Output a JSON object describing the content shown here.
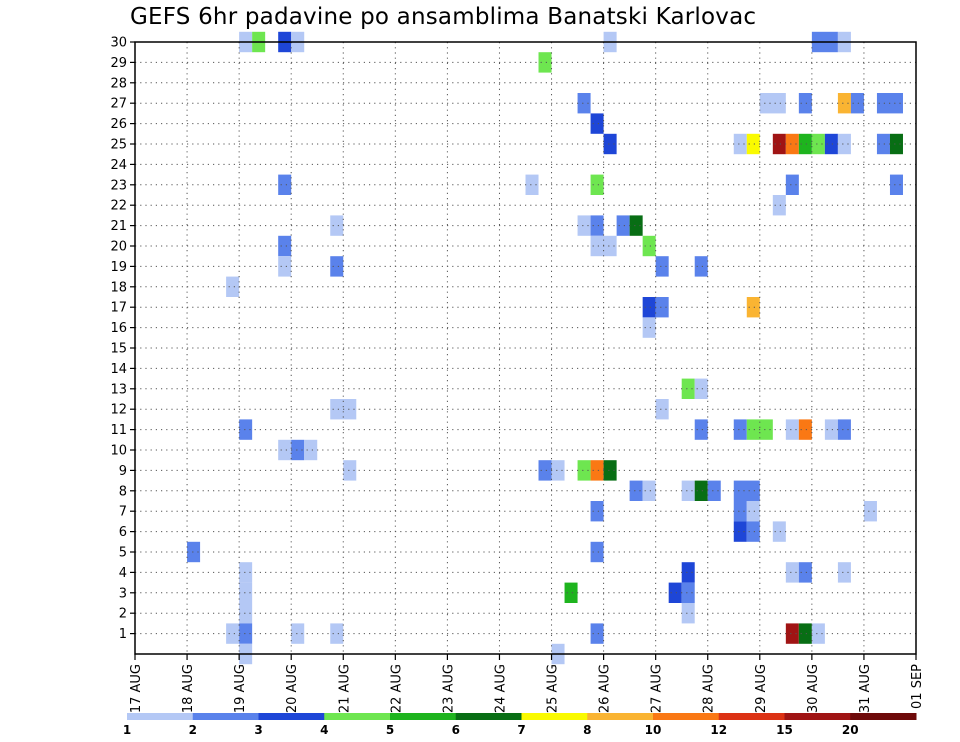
{
  "chart_data": {
    "type": "heatmap",
    "title": "GEFS 6hr padavine po ansamblima Banatski Karlovac",
    "xlabel": "",
    "ylabel": "",
    "x_ticks": [
      "17 AUG",
      "18 AUG",
      "19 AUG",
      "20 AUG",
      "21 AUG",
      "22 AUG",
      "23 AUG",
      "24 AUG",
      "25 AUG",
      "26 AUG",
      "27 AUG",
      "28 AUG",
      "29 AUG",
      "30 AUG",
      "31 AUG",
      "01 SEP"
    ],
    "y_ticks": [
      1,
      2,
      3,
      4,
      5,
      6,
      7,
      8,
      9,
      10,
      11,
      12,
      13,
      14,
      15,
      16,
      17,
      18,
      19,
      20,
      21,
      22,
      23,
      24,
      25,
      26,
      27,
      28,
      29,
      30
    ],
    "x_step_hours": 6,
    "xlim": [
      0,
      60
    ],
    "ylim": [
      0,
      30
    ],
    "grid": true,
    "colorbar": {
      "labels": [
        "1",
        "2",
        "3",
        "4",
        "5",
        "6",
        "7",
        "8",
        "10",
        "12",
        "15",
        "20"
      ],
      "colors": [
        "#b4c8f5",
        "#5a82eb",
        "#1e46d7",
        "#6ee650",
        "#1eb41e",
        "#086e14",
        "#fafa00",
        "#fab432",
        "#fa7814",
        "#dc3214",
        "#a01414",
        "#6e0a0a"
      ]
    },
    "cells": [
      {
        "x": [
          8,
          9
        ],
        "y": 30,
        "v": 1
      },
      {
        "x": [
          9,
          10
        ],
        "y": 30,
        "v": 4
      },
      {
        "x": [
          11,
          12
        ],
        "y": 30,
        "v": 3
      },
      {
        "x": [
          12,
          13
        ],
        "y": 30,
        "v": 1
      },
      {
        "x": [
          36,
          37
        ],
        "y": 30,
        "v": 1
      },
      {
        "x": [
          52,
          54
        ],
        "y": 30,
        "v": 2
      },
      {
        "x": [
          54,
          55
        ],
        "y": 30,
        "v": 1
      },
      {
        "x": [
          31,
          32
        ],
        "y": 29,
        "v": 4
      },
      {
        "x": [
          34,
          35
        ],
        "y": 27,
        "v": 2
      },
      {
        "x": [
          48,
          50
        ],
        "y": 27,
        "v": 1
      },
      {
        "x": [
          51,
          52
        ],
        "y": 27,
        "v": 2
      },
      {
        "x": [
          54,
          55
        ],
        "y": 27,
        "v": 8
      },
      {
        "x": [
          55,
          56
        ],
        "y": 27,
        "v": 2
      },
      {
        "x": [
          57,
          59
        ],
        "y": 27,
        "v": 2
      },
      {
        "x": [
          35,
          36
        ],
        "y": 26,
        "v": 3
      },
      {
        "x": [
          36,
          37
        ],
        "y": 25,
        "v": 3
      },
      {
        "x": [
          46,
          47
        ],
        "y": 25,
        "v": 1
      },
      {
        "x": [
          47,
          48
        ],
        "y": 25,
        "v": 7
      },
      {
        "x": [
          49,
          50
        ],
        "y": 25,
        "v": 15
      },
      {
        "x": [
          50,
          51
        ],
        "y": 25,
        "v": 10
      },
      {
        "x": [
          51,
          52
        ],
        "y": 25,
        "v": 5
      },
      {
        "x": [
          52,
          53
        ],
        "y": 25,
        "v": 4
      },
      {
        "x": [
          53,
          54
        ],
        "y": 25,
        "v": 3
      },
      {
        "x": [
          54,
          55
        ],
        "y": 25,
        "v": 1
      },
      {
        "x": [
          57,
          58
        ],
        "y": 25,
        "v": 2
      },
      {
        "x": [
          58,
          59
        ],
        "y": 25,
        "v": 6
      },
      {
        "x": [
          11,
          12
        ],
        "y": 23,
        "v": 2
      },
      {
        "x": [
          30,
          31
        ],
        "y": 23,
        "v": 1
      },
      {
        "x": [
          35,
          36
        ],
        "y": 23,
        "v": 4
      },
      {
        "x": [
          50,
          51
        ],
        "y": 23,
        "v": 2
      },
      {
        "x": [
          58,
          59
        ],
        "y": 23,
        "v": 2
      },
      {
        "x": [
          49,
          50
        ],
        "y": 22,
        "v": 1
      },
      {
        "x": [
          15,
          16
        ],
        "y": 21,
        "v": 1
      },
      {
        "x": [
          34,
          35
        ],
        "y": 21,
        "v": 1
      },
      {
        "x": [
          35,
          36
        ],
        "y": 21,
        "v": 2
      },
      {
        "x": [
          37,
          38
        ],
        "y": 21,
        "v": 2
      },
      {
        "x": [
          38,
          39
        ],
        "y": 21,
        "v": 6
      },
      {
        "x": [
          11,
          12
        ],
        "y": 20,
        "v": 2
      },
      {
        "x": [
          35,
          37
        ],
        "y": 20,
        "v": 1
      },
      {
        "x": [
          39,
          40
        ],
        "y": 20,
        "v": 4
      },
      {
        "x": [
          11,
          12
        ],
        "y": 19,
        "v": 1
      },
      {
        "x": [
          15,
          16
        ],
        "y": 19,
        "v": 2
      },
      {
        "x": [
          40,
          41
        ],
        "y": 19,
        "v": 2
      },
      {
        "x": [
          43,
          44
        ],
        "y": 19,
        "v": 2
      },
      {
        "x": [
          7,
          8
        ],
        "y": 18,
        "v": 1
      },
      {
        "x": [
          39,
          40
        ],
        "y": 17,
        "v": 3
      },
      {
        "x": [
          40,
          41
        ],
        "y": 17,
        "v": 2
      },
      {
        "x": [
          47,
          48
        ],
        "y": 17,
        "v": 8
      },
      {
        "x": [
          39,
          40
        ],
        "y": 16,
        "v": 1
      },
      {
        "x": [
          42,
          43
        ],
        "y": 13,
        "v": 4
      },
      {
        "x": [
          43,
          44
        ],
        "y": 13,
        "v": 1
      },
      {
        "x": [
          15,
          17
        ],
        "y": 12,
        "v": 1
      },
      {
        "x": [
          40,
          41
        ],
        "y": 12,
        "v": 1
      },
      {
        "x": [
          8,
          9
        ],
        "y": 11,
        "v": 2
      },
      {
        "x": [
          43,
          44
        ],
        "y": 11,
        "v": 2
      },
      {
        "x": [
          46,
          47
        ],
        "y": 11,
        "v": 2
      },
      {
        "x": [
          47,
          49
        ],
        "y": 11,
        "v": 4
      },
      {
        "x": [
          50,
          51
        ],
        "y": 11,
        "v": 1
      },
      {
        "x": [
          51,
          52
        ],
        "y": 11,
        "v": 10
      },
      {
        "x": [
          53,
          54
        ],
        "y": 11,
        "v": 1
      },
      {
        "x": [
          54,
          55
        ],
        "y": 11,
        "v": 2
      },
      {
        "x": [
          11,
          12
        ],
        "y": 10,
        "v": 1
      },
      {
        "x": [
          12,
          13
        ],
        "y": 10,
        "v": 2
      },
      {
        "x": [
          13,
          14
        ],
        "y": 10,
        "v": 1
      },
      {
        "x": [
          16,
          17
        ],
        "y": 9,
        "v": 1
      },
      {
        "x": [
          31,
          32
        ],
        "y": 9,
        "v": 2
      },
      {
        "x": [
          32,
          33
        ],
        "y": 9,
        "v": 1
      },
      {
        "x": [
          34,
          35
        ],
        "y": 9,
        "v": 4
      },
      {
        "x": [
          35,
          36
        ],
        "y": 9,
        "v": 10
      },
      {
        "x": [
          36,
          37
        ],
        "y": 9,
        "v": 6
      },
      {
        "x": [
          38,
          39
        ],
        "y": 8,
        "v": 2
      },
      {
        "x": [
          39,
          40
        ],
        "y": 8,
        "v": 1
      },
      {
        "x": [
          42,
          43
        ],
        "y": 8,
        "v": 1
      },
      {
        "x": [
          43,
          44
        ],
        "y": 8,
        "v": 6
      },
      {
        "x": [
          44,
          45
        ],
        "y": 8,
        "v": 2
      },
      {
        "x": [
          46,
          48
        ],
        "y": 8,
        "v": 2
      },
      {
        "x": [
          35,
          36
        ],
        "y": 7,
        "v": 2
      },
      {
        "x": [
          46,
          47
        ],
        "y": 7,
        "v": 2
      },
      {
        "x": [
          47,
          48
        ],
        "y": 7,
        "v": 1
      },
      {
        "x": [
          56,
          57
        ],
        "y": 7,
        "v": 1
      },
      {
        "x": [
          46,
          47
        ],
        "y": 6,
        "v": 3
      },
      {
        "x": [
          47,
          48
        ],
        "y": 6,
        "v": 2
      },
      {
        "x": [
          49,
          50
        ],
        "y": 6,
        "v": 1
      },
      {
        "x": [
          4,
          5
        ],
        "y": 5,
        "v": 2
      },
      {
        "x": [
          35,
          36
        ],
        "y": 5,
        "v": 2
      },
      {
        "x": [
          8,
          9
        ],
        "y": 4,
        "v": 1
      },
      {
        "x": [
          42,
          43
        ],
        "y": 4,
        "v": 3
      },
      {
        "x": [
          50,
          51
        ],
        "y": 4,
        "v": 1
      },
      {
        "x": [
          51,
          52
        ],
        "y": 4,
        "v": 2
      },
      {
        "x": [
          54,
          55
        ],
        "y": 4,
        "v": 1
      },
      {
        "x": [
          8,
          9
        ],
        "y": 3,
        "v": 1
      },
      {
        "x": [
          33,
          34
        ],
        "y": 3,
        "v": 5
      },
      {
        "x": [
          41,
          42
        ],
        "y": 3,
        "v": 3
      },
      {
        "x": [
          42,
          43
        ],
        "y": 3,
        "v": 2
      },
      {
        "x": [
          8,
          9
        ],
        "y": 2,
        "v": 1
      },
      {
        "x": [
          42,
          43
        ],
        "y": 2,
        "v": 1
      },
      {
        "x": [
          7,
          8
        ],
        "y": 1,
        "v": 1
      },
      {
        "x": [
          8,
          9
        ],
        "y": 1,
        "v": 2
      },
      {
        "x": [
          12,
          13
        ],
        "y": 1,
        "v": 1
      },
      {
        "x": [
          15,
          16
        ],
        "y": 1,
        "v": 1
      },
      {
        "x": [
          35,
          36
        ],
        "y": 1,
        "v": 2
      },
      {
        "x": [
          50,
          51
        ],
        "y": 1,
        "v": 15
      },
      {
        "x": [
          51,
          52
        ],
        "y": 1,
        "v": 6
      },
      {
        "x": [
          52,
          53
        ],
        "y": 1,
        "v": 1
      },
      {
        "x": [
          8,
          9
        ],
        "y": 0,
        "v": 1
      },
      {
        "x": [
          32,
          33
        ],
        "y": 0,
        "v": 1
      }
    ]
  }
}
